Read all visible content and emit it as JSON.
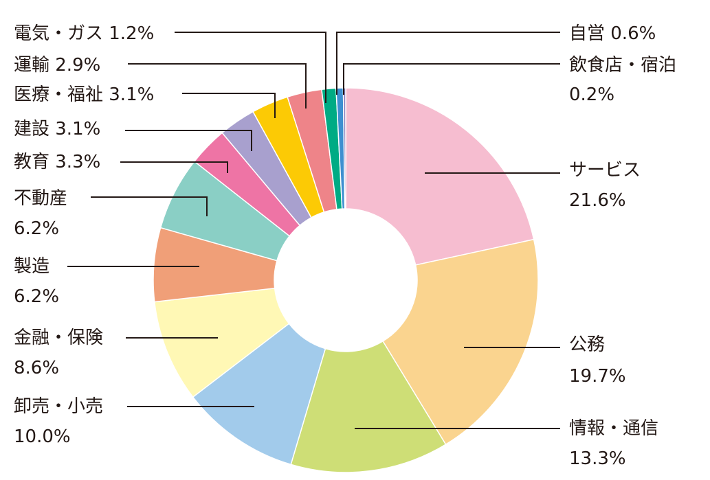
{
  "chart_data": {
    "type": "pie",
    "variant": "donut",
    "start_angle_deg": 0,
    "direction": "clockwise",
    "legend": "none",
    "slices": [
      {
        "name": "サービス",
        "value": 21.6,
        "label": "21.6%",
        "color": "#F6BDD0"
      },
      {
        "name": "公務",
        "value": 19.7,
        "label": "19.7%",
        "color": "#FAD48F"
      },
      {
        "name": "情報・通信",
        "value": 13.3,
        "label": "13.3%",
        "color": "#CEDE76"
      },
      {
        "name": "卸売・小売",
        "value": 10.0,
        "label": "10.0%",
        "color": "#A2CBEB"
      },
      {
        "name": "金融・保険",
        "value": 8.6,
        "label": "8.6%",
        "color": "#FFF8B5"
      },
      {
        "name": "製造",
        "value": 6.2,
        "label": "6.2%",
        "color": "#F09F78"
      },
      {
        "name": "不動産",
        "value": 6.2,
        "label": "6.2%",
        "color": "#8ACFC5"
      },
      {
        "name": "教育",
        "value": 3.3,
        "label": "3.3%",
        "color": "#EE74A5"
      },
      {
        "name": "建設",
        "value": 3.1,
        "label": "3.1%",
        "color": "#A8A0CE"
      },
      {
        "name": "医療・福祉",
        "value": 3.1,
        "label": "3.1%",
        "color": "#FCCA05"
      },
      {
        "name": "運輸",
        "value": 2.9,
        "label": "2.9%",
        "color": "#EE8489"
      },
      {
        "name": "電気・ガス",
        "value": 1.2,
        "label": "1.2%",
        "color": "#00AB84"
      },
      {
        "name": "自営",
        "value": 0.6,
        "label": "0.6%",
        "color": "#3D8FD0"
      },
      {
        "name": "飲食店・宿泊",
        "value": 0.2,
        "label": "0.2%",
        "color": "#8D7DBC"
      }
    ]
  }
}
